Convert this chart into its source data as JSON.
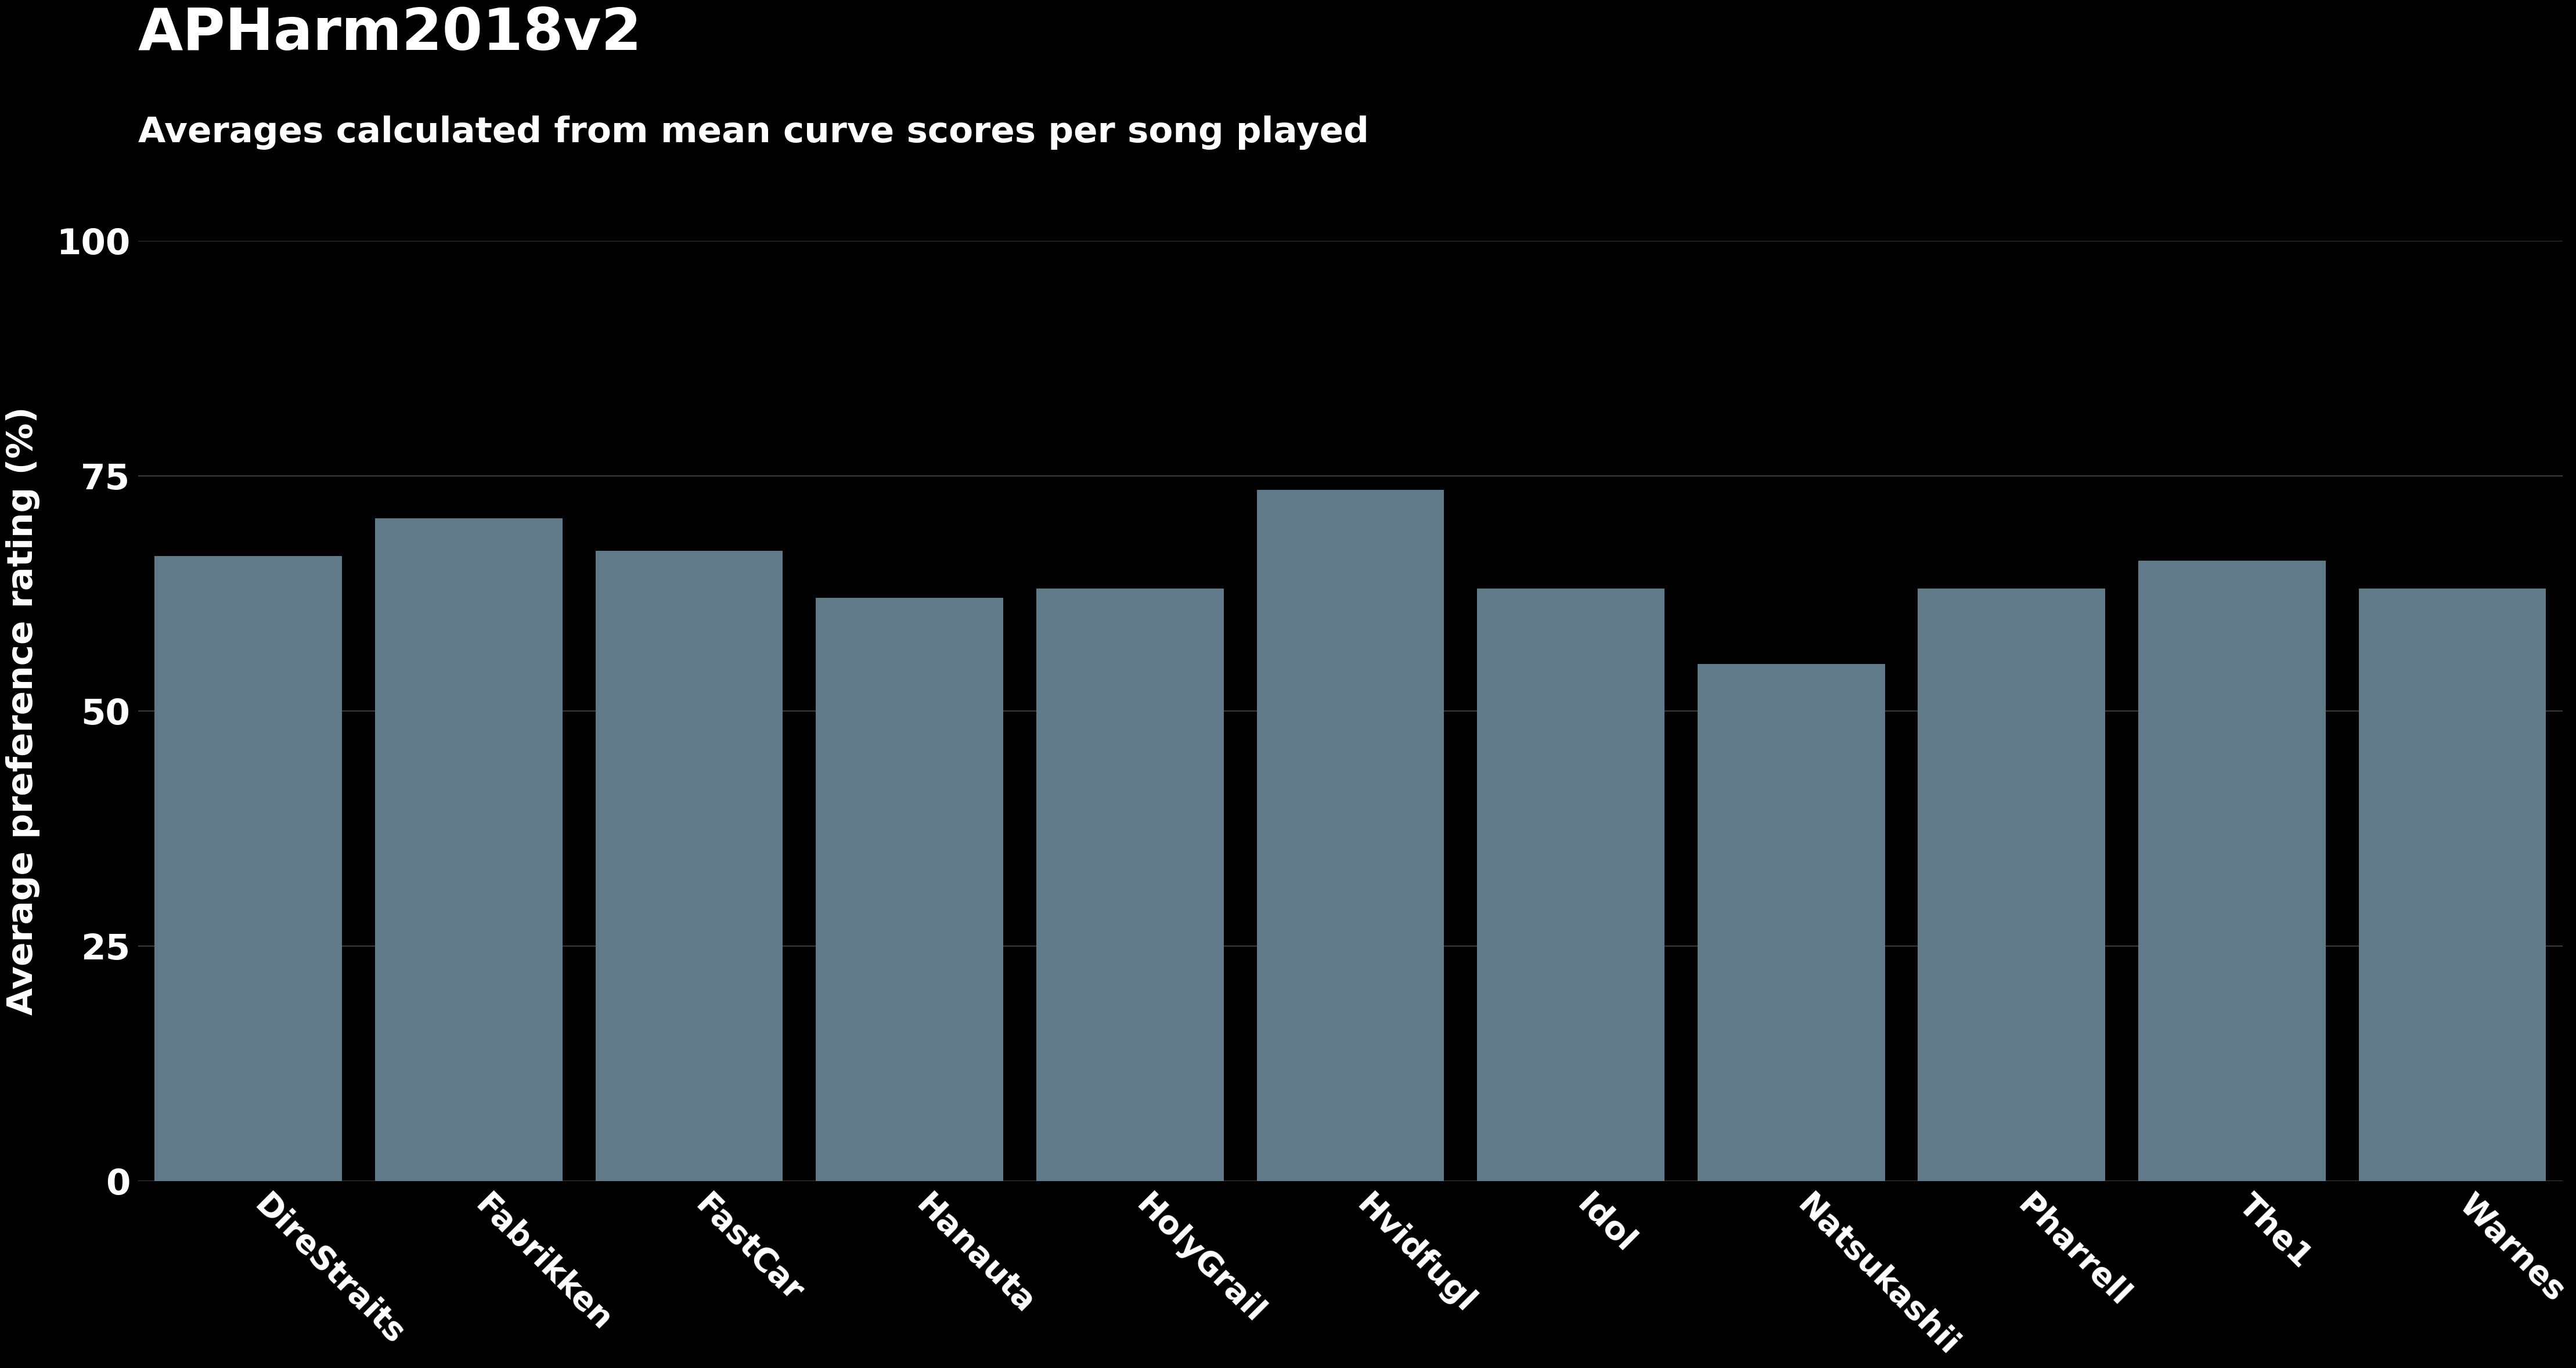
{
  "title": "APHarm2018v2",
  "subtitle": "Averages calculated from mean curve scores per song played",
  "ylabel": "Average preference rating (%)",
  "categories": [
    "DireStraits",
    "Fabrikken",
    "FastCar",
    "Hanauta",
    "HolyGrail",
    "Hvidfugl",
    "Idol",
    "Natsukashii",
    "Pharrell",
    "The1",
    "Warnes"
  ],
  "values": [
    66.5,
    70.5,
    67.0,
    62.0,
    63.0,
    73.5,
    63.0,
    55.0,
    63.0,
    66.0,
    63.0
  ],
  "bar_color": "#607a8a",
  "background_color": "#000000",
  "text_color": "#ffffff",
  "grid_color": "#3a3a3a",
  "ylim": [
    0,
    100
  ],
  "yticks": [
    0,
    25,
    50,
    75,
    100
  ],
  "title_fontsize": 72,
  "subtitle_fontsize": 44,
  "ylabel_fontsize": 44,
  "tick_fontsize": 44,
  "xtick_fontsize": 40,
  "xtick_rotation": -45,
  "bar_width": 0.85
}
